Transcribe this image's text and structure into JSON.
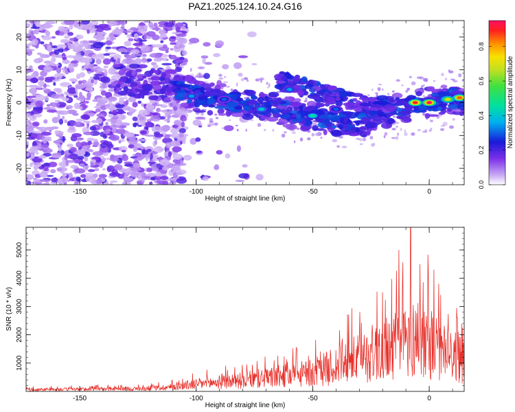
{
  "title": "PAZ1.2025.124.10.24.G16",
  "chart_data": [
    {
      "type": "heatmap",
      "xlabel": "Height of straight line (km)",
      "ylabel": "Frequency (Hz)",
      "xlim": [
        -173,
        15
      ],
      "ylim": [
        -25,
        25
      ],
      "xticks": [
        -150,
        -100,
        -50,
        0
      ],
      "yticks": [
        -20,
        -10,
        0,
        10,
        20
      ],
      "colorbar": {
        "label": "Normalized spectral amplitude",
        "range": [
          0,
          0.95
        ],
        "ticks": [
          "0.0",
          "0.2",
          "0.4",
          "0.6",
          "0.8"
        ]
      },
      "ridge": [
        {
          "x": -130,
          "y": 7
        },
        {
          "x": -110,
          "y": 5
        },
        {
          "x": -100,
          "y": 2
        },
        {
          "x": -90,
          "y": 1
        },
        {
          "x": -80,
          "y": 0
        },
        {
          "x": -70,
          "y": -1
        },
        {
          "x": -60,
          "y": -3
        },
        {
          "x": -50,
          "y": -4
        },
        {
          "x": -40,
          "y": -5
        },
        {
          "x": -30,
          "y": -6
        },
        {
          "x": -20,
          "y": -3
        },
        {
          "x": -10,
          "y": -1
        },
        {
          "x": 0,
          "y": 0
        },
        {
          "x": 10,
          "y": 1
        },
        {
          "x": 15,
          "y": 1
        }
      ],
      "branch": [
        {
          "x": -65,
          "y": 7
        },
        {
          "x": -55,
          "y": 5
        },
        {
          "x": -45,
          "y": 3
        },
        {
          "x": -35,
          "y": 1
        },
        {
          "x": -25,
          "y": -1
        },
        {
          "x": -15,
          "y": 0
        }
      ],
      "peaks": [
        {
          "x": 0,
          "y": 0,
          "value": 0.95
        },
        {
          "x": -6,
          "y": 0,
          "value": 0.9
        },
        {
          "x": 13,
          "y": 1.5,
          "value": 0.85
        },
        {
          "x": 8,
          "y": 1,
          "value": 0.7
        },
        {
          "x": -50,
          "y": -4,
          "value": 0.45
        },
        {
          "x": -72,
          "y": -2,
          "value": 0.4
        },
        {
          "x": -102,
          "y": 2,
          "value": 0.35
        },
        {
          "x": -60,
          "y": 4,
          "value": 0.35
        },
        {
          "x": -88,
          "y": 1,
          "value": 0.3
        },
        {
          "x": -40,
          "y": -2,
          "value": 0.3
        }
      ]
    },
    {
      "type": "line",
      "xlabel": "Height of straight line (km)",
      "ylabel": "SNR (10 * v/v)",
      "xlim": [
        -173,
        15
      ],
      "ylim": [
        0,
        5800
      ],
      "xticks": [
        -150,
        -100,
        -50,
        0
      ],
      "yticks": [
        1000,
        2000,
        3000,
        4000,
        5000
      ],
      "color": "#e8302a",
      "envelope": [
        {
          "x": -173,
          "y": 100
        },
        {
          "x": -150,
          "y": 120
        },
        {
          "x": -120,
          "y": 150
        },
        {
          "x": -110,
          "y": 250
        },
        {
          "x": -100,
          "y": 400
        },
        {
          "x": -80,
          "y": 600
        },
        {
          "x": -65,
          "y": 800
        },
        {
          "x": -50,
          "y": 1000
        },
        {
          "x": -40,
          "y": 1400
        },
        {
          "x": -30,
          "y": 1800
        },
        {
          "x": -20,
          "y": 2300
        },
        {
          "x": -12,
          "y": 2600
        },
        {
          "x": -5,
          "y": 2900
        },
        {
          "x": 0,
          "y": 2700
        },
        {
          "x": 5,
          "y": 2100
        },
        {
          "x": 15,
          "y": 1800
        }
      ],
      "spikes": [
        {
          "x": -8,
          "y": 5800
        },
        {
          "x": -13,
          "y": 5000
        },
        {
          "x": -20,
          "y": 3500
        },
        {
          "x": -4,
          "y": 4500
        },
        {
          "x": 2,
          "y": 4300
        },
        {
          "x": 12,
          "y": 2600
        }
      ]
    }
  ]
}
